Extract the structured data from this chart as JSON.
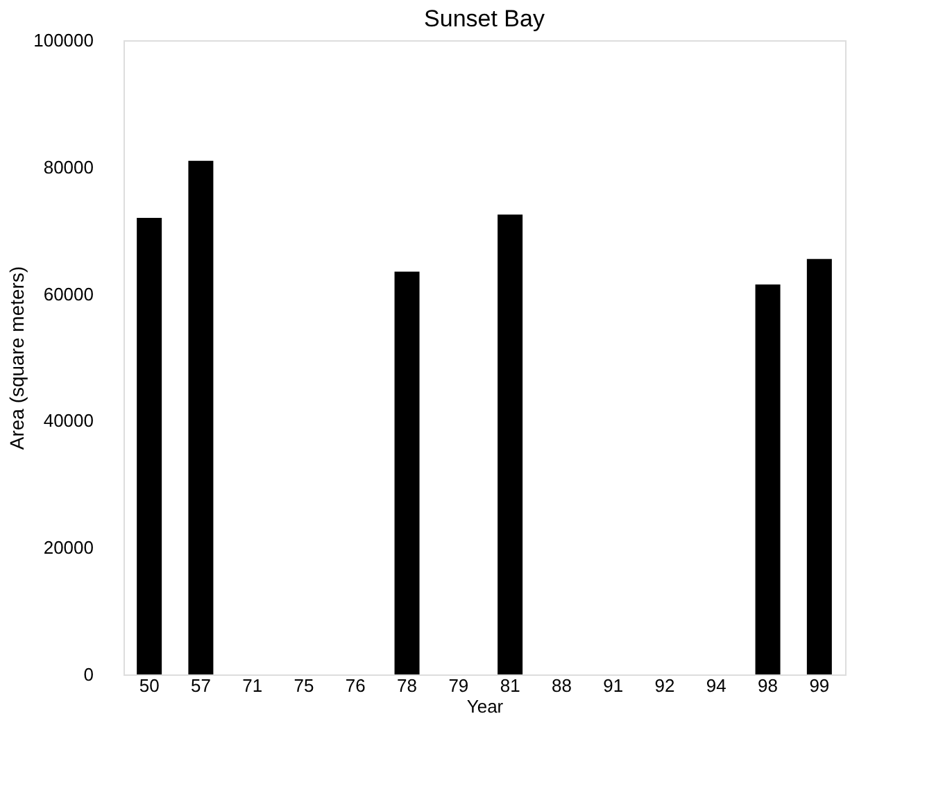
{
  "chart_data": {
    "type": "bar",
    "title": "Sunset Bay",
    "xlabel": "Year",
    "ylabel": "Area (square meters)",
    "categories": [
      "50",
      "57",
      "71",
      "75",
      "76",
      "78",
      "79",
      "81",
      "88",
      "91",
      "92",
      "94",
      "98",
      "99"
    ],
    "values": [
      72000,
      81000,
      0,
      0,
      0,
      63500,
      0,
      72500,
      0,
      0,
      0,
      0,
      61500,
      65500
    ],
    "color": "#000000",
    "ylim": [
      0,
      100000
    ],
    "yticks": [
      0,
      20000,
      40000,
      60000,
      80000,
      100000
    ],
    "grid": false
  }
}
